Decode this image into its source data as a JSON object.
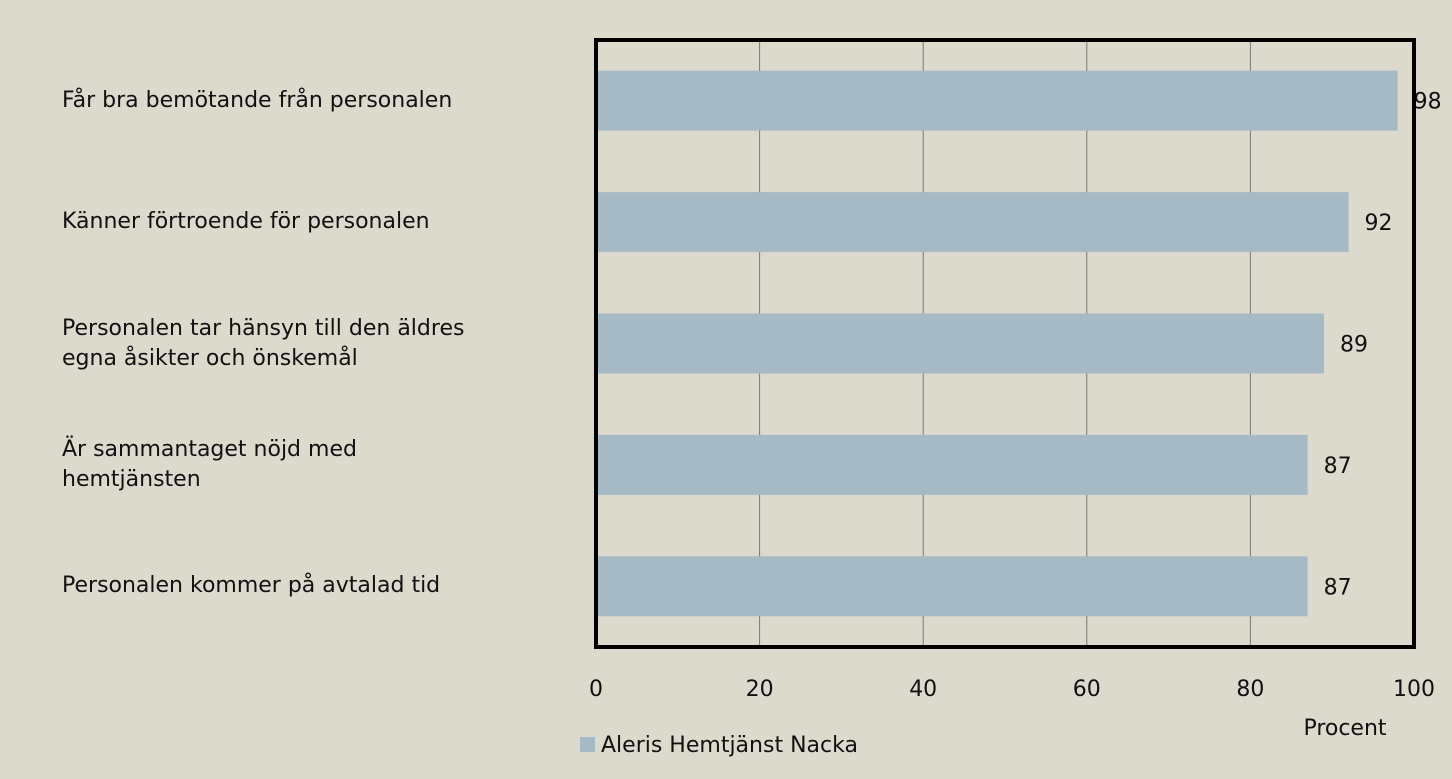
{
  "chart_data": {
    "type": "bar",
    "orientation": "horizontal",
    "categories": [
      "Får bra bemötande från personalen",
      "Känner förtroende för personalen",
      "Personalen tar hänsyn till den äldres\negna åsikter och önskemål",
      "Är sammantaget nöjd med\nhemtjänsten",
      "Personalen kommer på avtalad tid"
    ],
    "series": [
      {
        "name": "Aleris Hemtjänst Nacka",
        "color": "#a6bac5",
        "values": [
          98,
          92,
          89,
          87,
          87
        ]
      }
    ],
    "xlabel": "Procent",
    "xlim": [
      0,
      100
    ],
    "xticks": [
      0,
      20,
      40,
      60,
      80,
      100
    ],
    "grid": true,
    "legend": "bottom"
  }
}
